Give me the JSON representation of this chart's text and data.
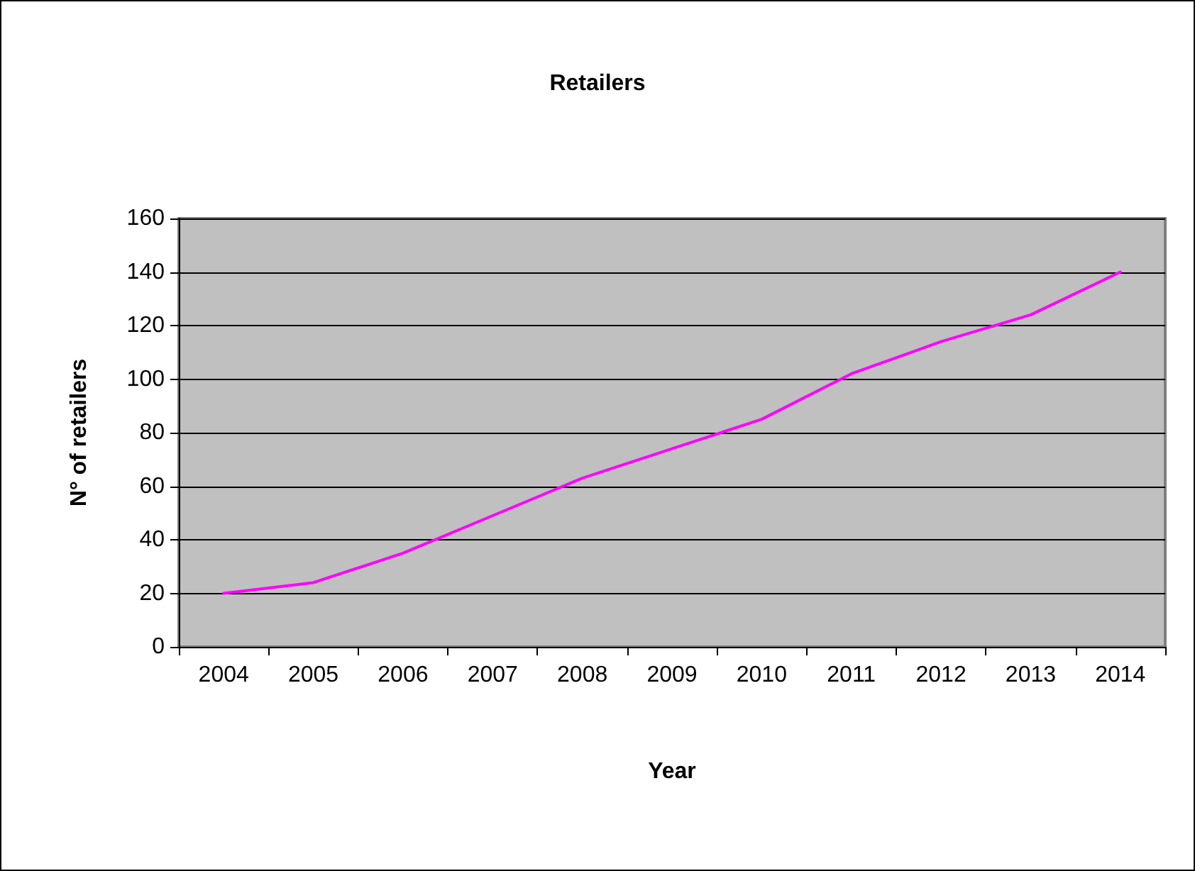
{
  "chart_data": {
    "type": "line",
    "title": "Retailers",
    "xlabel": "Year",
    "ylabel": "N° of retailers",
    "categories": [
      "2004",
      "2005",
      "2006",
      "2007",
      "2008",
      "2009",
      "2010",
      "2011",
      "2012",
      "2013",
      "2014"
    ],
    "series": [
      {
        "color": "#ff00ff",
        "values": [
          20,
          24,
          35,
          49,
          63,
          74,
          85,
          102,
          114,
          124,
          140
        ]
      }
    ],
    "ylim": [
      0,
      160
    ],
    "yticks": [
      0,
      20,
      40,
      60,
      80,
      100,
      120,
      140,
      160
    ],
    "grid": "y",
    "marker": "none",
    "line_style": "solid"
  }
}
